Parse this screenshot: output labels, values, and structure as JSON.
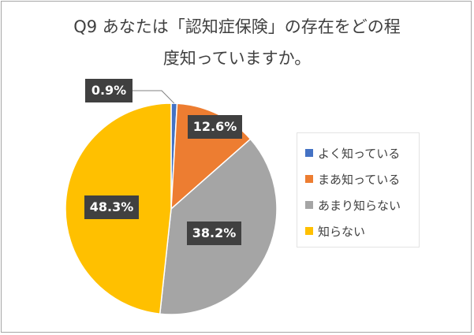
{
  "chart_data": {
    "type": "pie",
    "title_lines": [
      "Q9 あなたは「認知症保険」の存在をどの程",
      "度知っていますか。"
    ],
    "categories": [
      "よく知っている",
      "まあ知っている",
      "あまり知らない",
      "知らない"
    ],
    "values": [
      0.9,
      12.6,
      38.2,
      48.3
    ],
    "value_labels": [
      "0.9%",
      "12.6%",
      "38.2%",
      "48.3%"
    ],
    "colors": [
      "#4472C4",
      "#ED7D31",
      "#A5A5A5",
      "#FFC000"
    ],
    "legend_position": "right"
  }
}
